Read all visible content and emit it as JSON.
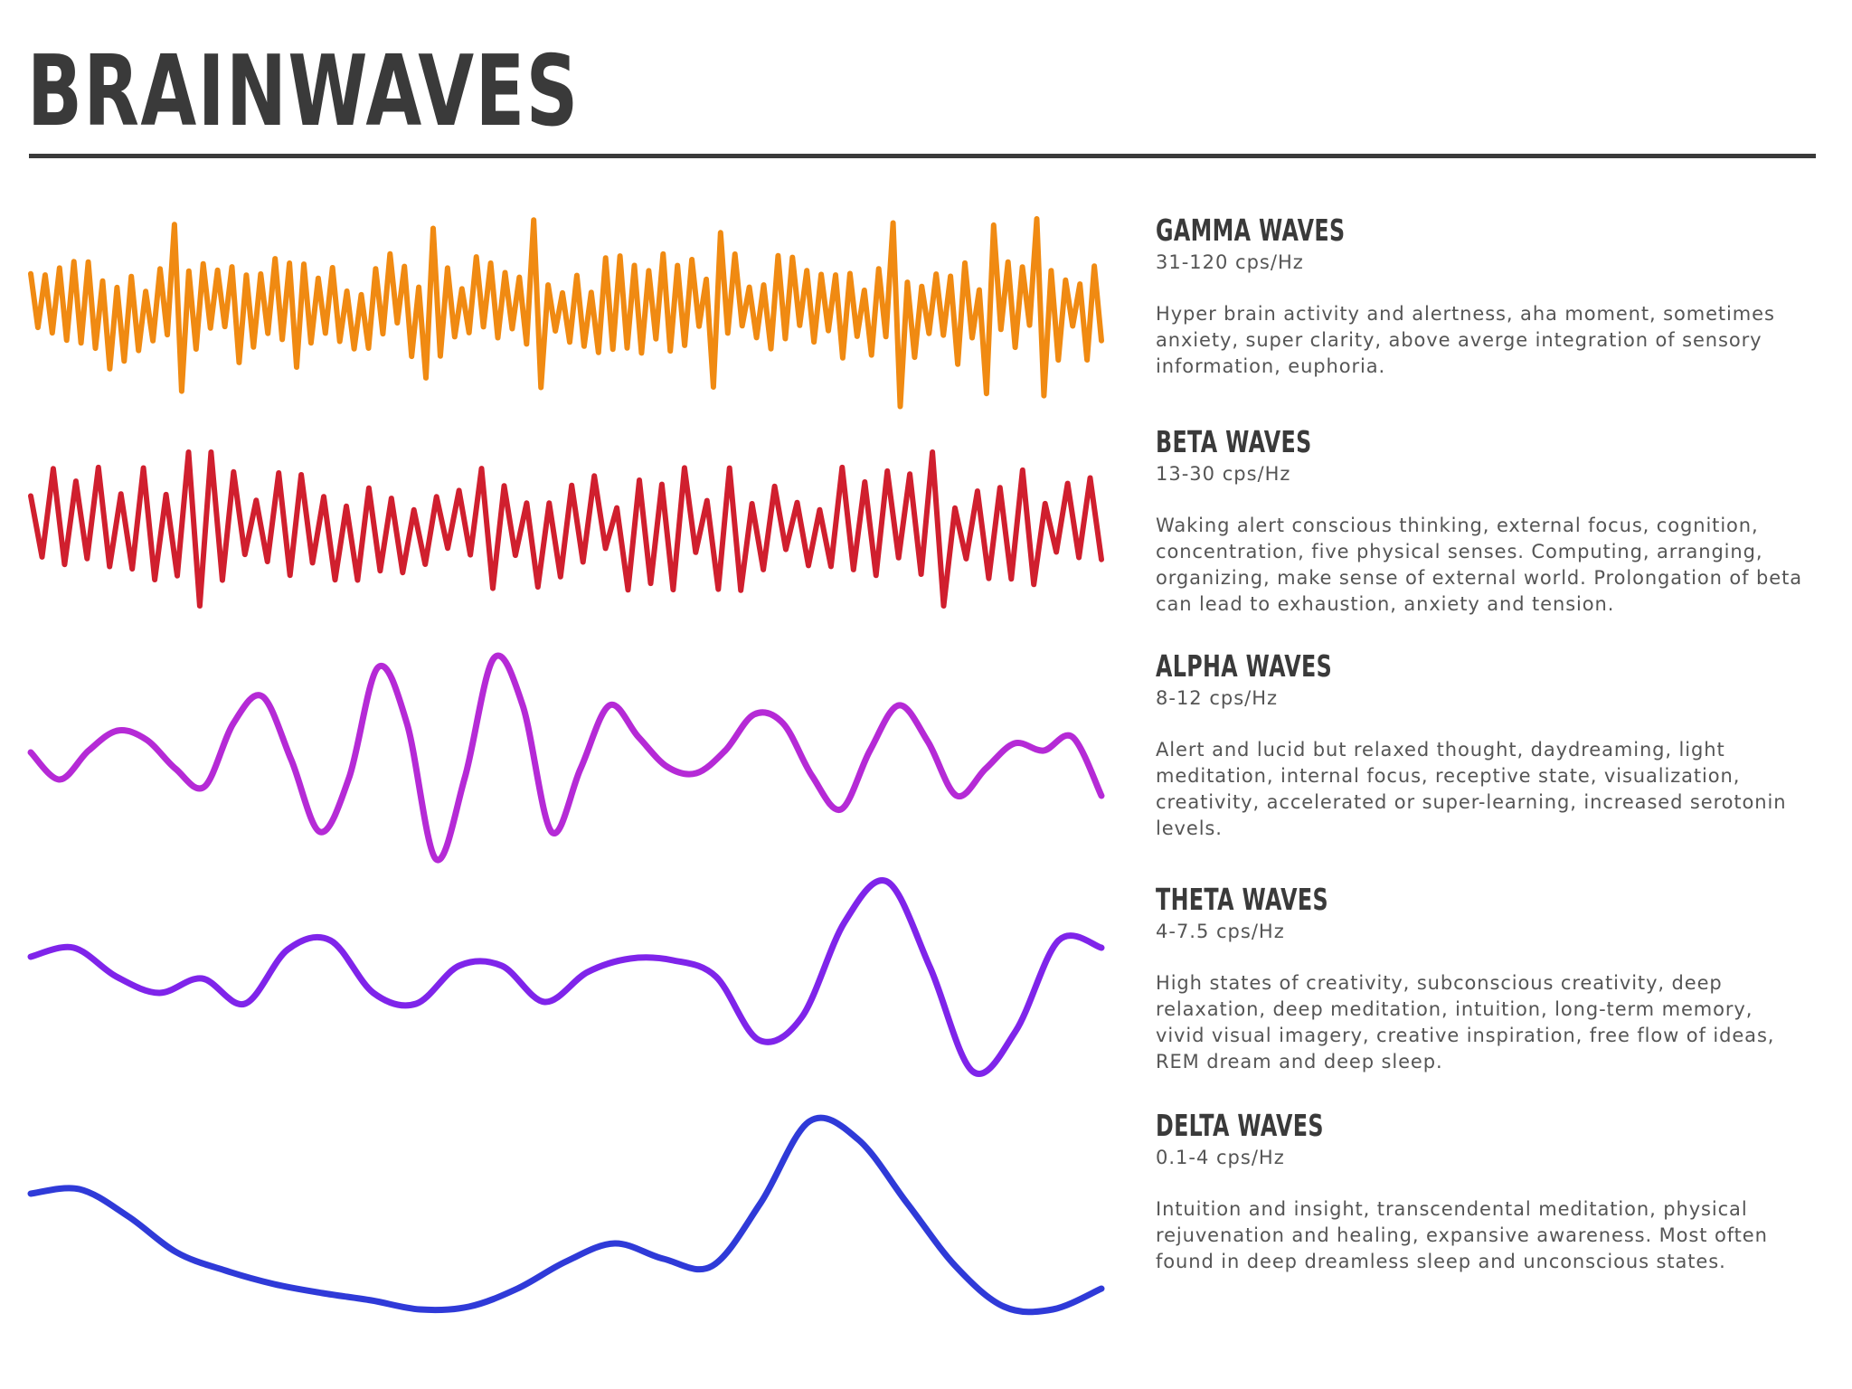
{
  "title": "BRAINWAVES",
  "colors": {
    "title": "#3a3a3a",
    "gamma": "#f08a12",
    "beta": "#d01f2e",
    "alpha": "#b52ad6",
    "theta": "#7f24ea",
    "delta": "#2f3ad8"
  },
  "waves": [
    {
      "id": "gamma",
      "heading": "GAMMA WAVES",
      "frequency": "31-120 cps/Hz",
      "description": "Hyper brain activity and alertness, aha moment, sometimes anxiety, super clarity, above averge integration of sensory information, euphoria."
    },
    {
      "id": "beta",
      "heading": "BETA WAVES",
      "frequency": "13-30 cps/Hz",
      "description": "Waking alert conscious thinking, external focus, cognition, concentration, five physical senses. Computing, arranging, organizing, make sense of external world. Prolongation of beta can lead to exhaustion, anxiety and tension."
    },
    {
      "id": "alpha",
      "heading": "ALPHA WAVES",
      "frequency": "8-12 cps/Hz",
      "description": "Alert and lucid but relaxed thought, daydreaming, light meditation, internal focus, receptive state, visualization, creativity, accelerated or super-learning, increased serotonin levels."
    },
    {
      "id": "theta",
      "heading": "THETA WAVES",
      "frequency": "4-7.5 cps/Hz",
      "description": "High states of creativity, subconscious creativity, deep relaxation, deep meditation, intuition, long-term memory, vivid visual imagery, creative inspiration, free flow of ideas, REM dream and deep sleep."
    },
    {
      "id": "delta",
      "heading": "DELTA WAVES",
      "frequency": "0.1-4 cps/Hz",
      "description": "Intuition and insight, transcendental meditation, physical rejuvenation and healing, expansive awareness. Most often found in deep dreamless sleep and unconscious states."
    }
  ]
}
